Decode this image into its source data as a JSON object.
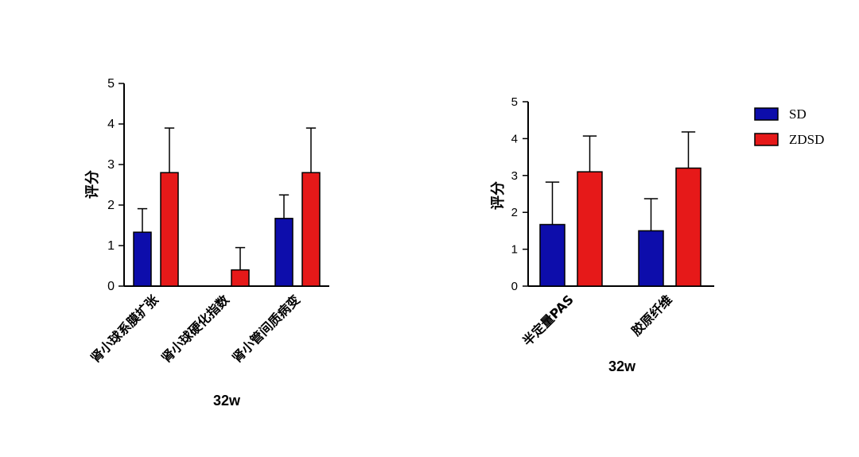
{
  "colors": {
    "SD": "#0d0dab",
    "ZDSD": "#e61919"
  },
  "legend": {
    "entries": [
      "SD",
      "ZDSD"
    ],
    "placement": "top-right"
  },
  "chart_data": [
    {
      "type": "bar",
      "title": "",
      "xlabel": "32w",
      "ylabel": "评分",
      "ylim": [
        0,
        5
      ],
      "yticks": [
        0,
        1,
        2,
        3,
        4,
        5
      ],
      "categories": [
        "肾小球系膜扩张",
        "肾小球硬化指数",
        "肾小管间质病变"
      ],
      "series": [
        {
          "name": "SD",
          "values": [
            1.33,
            0,
            1.67
          ],
          "errors": [
            0.58,
            0,
            0.58
          ]
        },
        {
          "name": "ZDSD",
          "values": [
            2.8,
            0.4,
            2.8
          ],
          "errors": [
            1.1,
            0.55,
            1.1
          ]
        }
      ]
    },
    {
      "type": "bar",
      "title": "",
      "xlabel": "32w",
      "ylabel": "评分",
      "ylim": [
        0,
        5
      ],
      "yticks": [
        0,
        1,
        2,
        3,
        4,
        5
      ],
      "categories": [
        "半定量PAS",
        "胶原纤维"
      ],
      "series": [
        {
          "name": "SD",
          "values": [
            1.67,
            1.5
          ],
          "errors": [
            1.15,
            0.87
          ]
        },
        {
          "name": "ZDSD",
          "values": [
            3.1,
            3.2
          ],
          "errors": [
            0.97,
            0.98
          ]
        }
      ]
    }
  ]
}
